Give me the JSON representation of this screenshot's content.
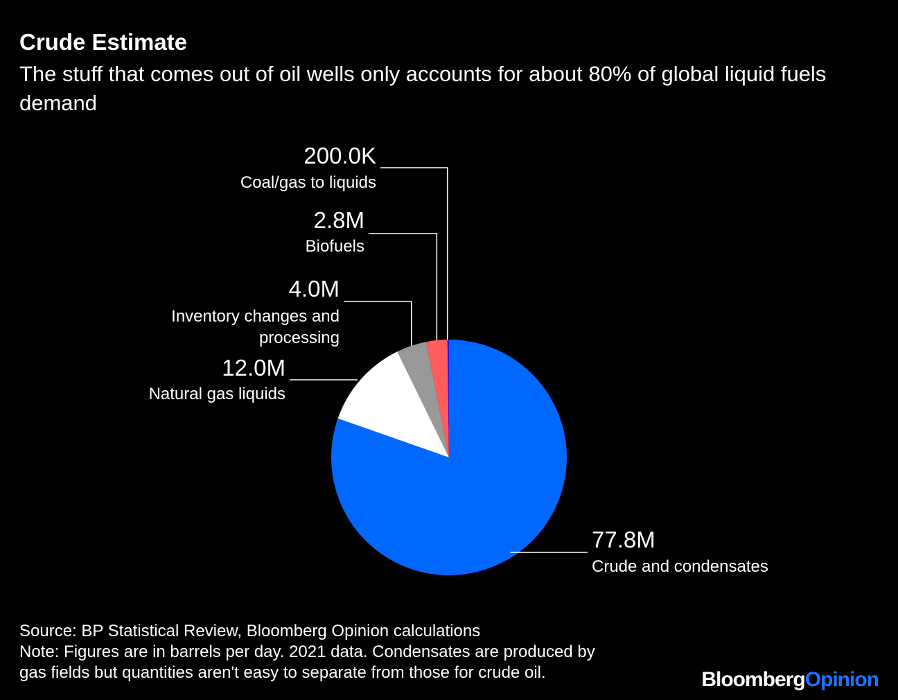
{
  "header": {
    "title": "Crude Estimate",
    "subtitle": "The stuff that comes out of oil wells only accounts for about 80% of global liquid fuels demand"
  },
  "chart_data": {
    "type": "pie",
    "title": "Crude Estimate",
    "unit": "barrels per day",
    "slices": [
      {
        "label": "Crude and condensates",
        "value": 77.8,
        "display": "77.8M",
        "color": "#0068ff"
      },
      {
        "label": "Natural gas liquids",
        "value": 12.0,
        "display": "12.0M",
        "color": "#ffffff"
      },
      {
        "label": "Inventory changes and processing",
        "label_lines": [
          "Inventory changes and",
          "processing"
        ],
        "value": 4.0,
        "display": "4.0M",
        "color": "#999999"
      },
      {
        "label": "Biofuels",
        "value": 2.8,
        "display": "2.8M",
        "color": "#ff5c5c"
      },
      {
        "label": "Coal/gas to liquids",
        "value": 0.2,
        "display": "200.0K",
        "color": "#1a1aff"
      }
    ]
  },
  "footer": {
    "source": "Source: BP Statistical Review, Bloomberg Opinion calculations",
    "note_line1": "Note: Figures are in barrels per day. 2021 data. Condensates are produced by",
    "note_line2": "gas fields but quantities aren't easy to separate from those for crude oil."
  },
  "brand": {
    "part1": "Bloomberg",
    "part2": "Opinion"
  }
}
